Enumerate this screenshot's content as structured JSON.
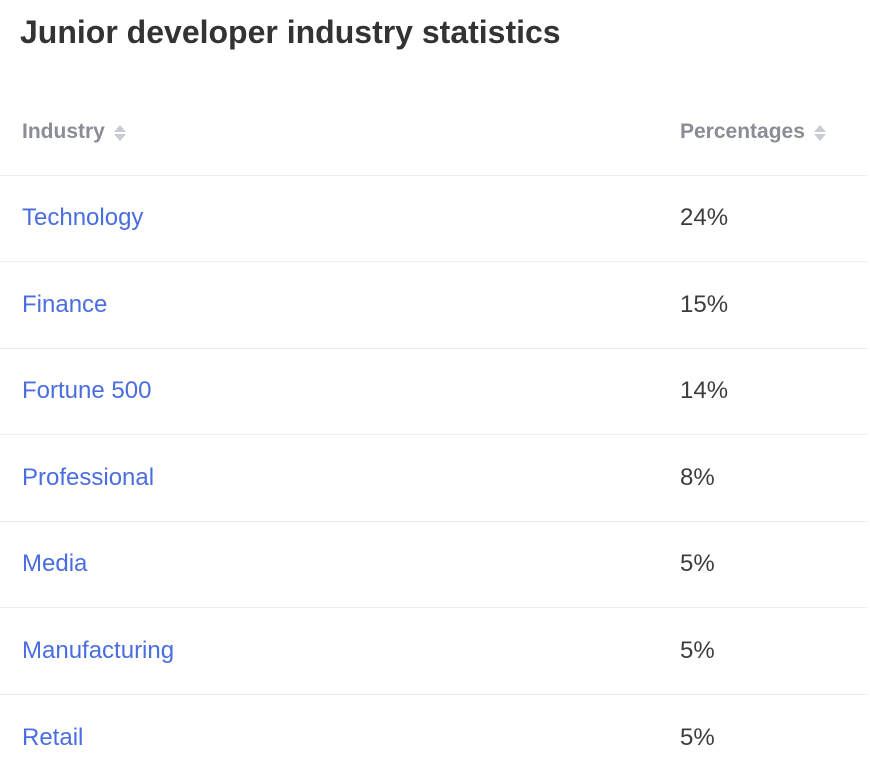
{
  "title": "Junior developer industry statistics",
  "table": {
    "headers": {
      "industry": "Industry",
      "percentages": "Percentages"
    },
    "rows": [
      {
        "industry": "Technology",
        "percentage": "24%"
      },
      {
        "industry": "Finance",
        "percentage": "15%"
      },
      {
        "industry": "Fortune 500",
        "percentage": "14%"
      },
      {
        "industry": "Professional",
        "percentage": "8%"
      },
      {
        "industry": "Media",
        "percentage": "5%"
      },
      {
        "industry": "Manufacturing",
        "percentage": "5%"
      },
      {
        "industry": "Retail",
        "percentage": "5%"
      }
    ]
  },
  "colors": {
    "link": "#4a6ee0",
    "header_text": "#8a8d96",
    "body_text": "#3d3d3d",
    "divider": "#ececef"
  },
  "icons": {
    "sort": "sort-arrows-icon"
  }
}
